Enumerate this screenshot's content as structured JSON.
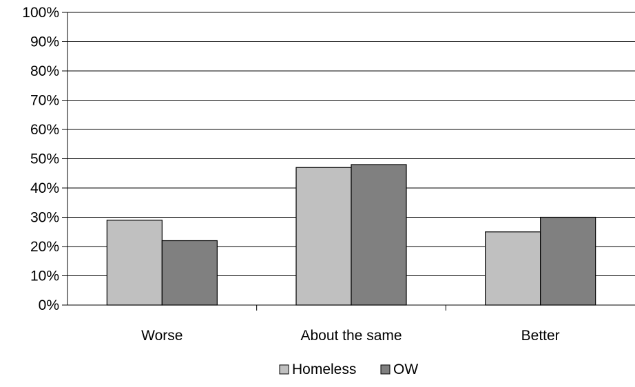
{
  "chart_data": {
    "type": "bar",
    "categories": [
      "Worse",
      "About the same",
      "Better"
    ],
    "series": [
      {
        "name": "Homeless",
        "values": [
          29,
          47,
          25
        ],
        "color": "#c0c0c0"
      },
      {
        "name": "OW",
        "values": [
          22,
          48,
          30
        ],
        "color": "#808080"
      }
    ],
    "y_ticks": [
      "0%",
      "10%",
      "20%",
      "30%",
      "40%",
      "50%",
      "60%",
      "70%",
      "80%",
      "90%",
      "100%"
    ],
    "ylim": [
      0,
      100
    ],
    "grid": true,
    "legend_position": "bottom"
  }
}
